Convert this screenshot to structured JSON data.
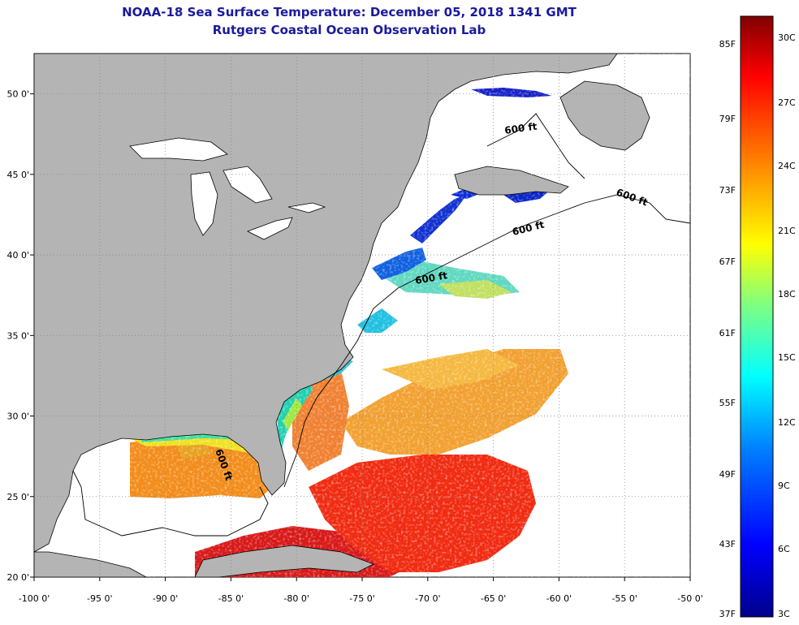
{
  "title": "NOAA-18 Sea Surface Temperature:  December 05, 2018 1341 GMT",
  "subtitle": "Rutgers Coastal Ocean Observation Lab",
  "map": {
    "lon_range": [
      -100,
      -50
    ],
    "lat_range": [
      20,
      52.5
    ],
    "lon_ticks": [
      {
        "value": -100,
        "label": "-100 0'"
      },
      {
        "value": -95,
        "label": "-95 0'"
      },
      {
        "value": -90,
        "label": "-90 0'"
      },
      {
        "value": -85,
        "label": "-85 0'"
      },
      {
        "value": -80,
        "label": "-80 0'"
      },
      {
        "value": -75,
        "label": "-75 0'"
      },
      {
        "value": -70,
        "label": "-70 0'"
      },
      {
        "value": -65,
        "label": "-65 0'"
      },
      {
        "value": -60,
        "label": "-60 0'"
      },
      {
        "value": -55,
        "label": "-55 0'"
      },
      {
        "value": -50,
        "label": "-50 0'"
      }
    ],
    "lat_ticks": [
      {
        "value": 20,
        "label": "20 0'"
      },
      {
        "value": 25,
        "label": "25 0'"
      },
      {
        "value": 30,
        "label": "30 0'"
      },
      {
        "value": 35,
        "label": "35 0'"
      },
      {
        "value": 40,
        "label": "40 0'"
      },
      {
        "value": 45,
        "label": "45 0'"
      },
      {
        "value": 50,
        "label": "50 0'"
      }
    ],
    "isobath_labels": [
      "600 ft",
      "600 ft",
      "600 ft",
      "600 ft",
      "600 ft"
    ],
    "colors": {
      "land": "#b4b4b4",
      "water": "#ffffff",
      "grid": "#888888"
    }
  },
  "colorbar": {
    "fahrenheit_labels": [
      "85F",
      "79F",
      "73F",
      "67F",
      "61F",
      "55F",
      "49F",
      "43F",
      "37F"
    ],
    "celsius_labels": [
      "30C",
      "27C",
      "24C",
      "21C",
      "18C",
      "15C",
      "12C",
      "9C",
      "6C",
      "3C"
    ],
    "range_c": [
      3,
      31
    ],
    "stops": [
      "#00008c",
      "#0000ff",
      "#0080ff",
      "#00ffff",
      "#80ff80",
      "#ffff00",
      "#ff8000",
      "#ff0000",
      "#800000"
    ]
  }
}
